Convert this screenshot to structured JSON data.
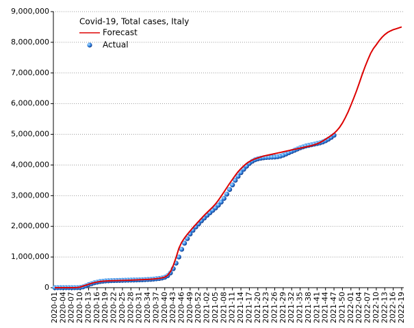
{
  "chart_data": {
    "type": "line",
    "title": "Covid-19, Total cases, Italy",
    "categories": [
      "2020-01",
      null,
      null,
      "2020-04",
      null,
      null,
      "2020-07",
      null,
      null,
      "2020-10",
      null,
      null,
      "2020-13",
      null,
      null,
      "2020-16",
      null,
      null,
      "2020-19",
      null,
      null,
      "2020-22",
      null,
      null,
      "2020-25",
      null,
      null,
      "2020-28",
      null,
      null,
      "2020-31",
      null,
      null,
      "2020-34",
      null,
      null,
      "2020-37",
      null,
      null,
      "2020-40",
      null,
      null,
      "2020-43",
      null,
      null,
      "2020-46",
      null,
      null,
      "2020-49",
      null,
      null,
      "2020-52",
      null,
      null,
      "2021-02",
      null,
      null,
      "2021-05",
      null,
      null,
      "2021-08",
      null,
      null,
      "2021-11",
      null,
      null,
      "2021-14",
      null,
      null,
      "2021-17",
      null,
      null,
      "2021-20",
      null,
      null,
      "2021-23",
      null,
      null,
      "2021-26",
      null,
      null,
      "2021-29",
      null,
      null,
      "2021-32",
      null,
      null,
      "2021-35",
      null,
      null,
      "2021-38",
      null,
      null,
      "2021-41",
      null,
      null,
      "2021-44",
      null,
      null,
      "2021-47",
      null,
      null,
      "2021-50",
      null,
      null,
      "2022-01",
      null,
      null,
      "2022-04",
      null,
      null,
      "2022-07",
      null,
      null,
      "2022-10",
      null,
      null,
      "2022-13",
      null,
      null,
      "2022-16",
      null,
      null,
      "2022-19"
    ],
    "series": [
      {
        "name": "Forecast",
        "color": "#dd0000",
        "style": "line",
        "values": [
          0,
          0,
          0,
          0,
          0,
          0,
          0,
          0,
          5000,
          20000,
          50000,
          80000,
          110000,
          140000,
          165000,
          185000,
          200000,
          212000,
          218000,
          222000,
          225000,
          228000,
          230000,
          233000,
          236000,
          240000,
          243000,
          246000,
          250000,
          254000,
          258000,
          262000,
          266000,
          270000,
          276000,
          283000,
          292000,
          305000,
          320000,
          345000,
          400000,
          520000,
          720000,
          980000,
          1280000,
          1480000,
          1620000,
          1740000,
          1850000,
          1960000,
          2060000,
          2160000,
          2260000,
          2360000,
          2450000,
          2540000,
          2630000,
          2730000,
          2850000,
          2980000,
          3120000,
          3260000,
          3400000,
          3530000,
          3660000,
          3780000,
          3880000,
          3970000,
          4050000,
          4110000,
          4160000,
          4200000,
          4230000,
          4260000,
          4290000,
          4310000,
          4330000,
          4350000,
          4370000,
          4390000,
          4410000,
          4430000,
          4450000,
          4470000,
          4490000,
          4510000,
          4530000,
          4550000,
          4570000,
          4590000,
          4610000,
          4630000,
          4660000,
          4690000,
          4730000,
          4780000,
          4840000,
          4900000,
          4960000,
          5030000,
          5120000,
          5230000,
          5370000,
          5540000,
          5730000,
          5950000,
          6180000,
          6420000,
          6680000,
          6950000,
          7200000,
          7430000,
          7640000,
          7800000,
          7920000,
          8050000,
          8160000,
          8250000,
          8320000,
          8370000,
          8410000,
          8440000,
          8470000,
          8500000
        ]
      },
      {
        "name": "Actual",
        "color": "#1f5fd0",
        "style": "markers",
        "values": [
          0,
          0,
          0,
          0,
          0,
          0,
          0,
          0,
          1000,
          10000,
          25000,
          60000,
          100000,
          130000,
          160000,
          180000,
          200000,
          210000,
          220000,
          225000,
          230000,
          233000,
          235000,
          237000,
          240000,
          242000,
          245000,
          248000,
          250000,
          252000,
          255000,
          258000,
          262000,
          267000,
          272000,
          280000,
          290000,
          300000,
          315000,
          340000,
          390000,
          480000,
          620000,
          800000,
          1000000,
          1250000,
          1450000,
          1600000,
          1750000,
          1870000,
          1980000,
          2080000,
          2180000,
          2270000,
          2360000,
          2440000,
          2520000,
          2600000,
          2690000,
          2790000,
          2910000,
          3050000,
          3200000,
          3350000,
          3500000,
          3630000,
          3750000,
          3860000,
          3960000,
          4050000,
          4120000,
          4170000,
          4200000,
          4220000,
          4235000,
          4245000,
          4250000,
          4255000,
          4260000,
          4270000,
          4290000,
          4320000,
          4360000,
          4400000,
          4440000,
          4480000,
          4520000,
          4560000,
          4590000,
          4620000,
          4640000,
          4660000,
          4680000,
          4700000,
          4720000,
          4750000,
          4790000,
          4840000,
          4900000,
          4970000,
          null,
          null,
          null,
          null,
          null,
          null,
          null,
          null,
          null,
          null,
          null,
          null,
          null,
          null,
          null,
          null,
          null,
          null,
          null,
          null,
          null,
          null,
          null,
          null
        ]
      }
    ],
    "ylim": [
      0,
      9000000
    ],
    "yticks": [
      0,
      {
        "value": 1000000,
        "label": "1,000,000"
      },
      {
        "value": 2000000,
        "label": "2,000,000"
      },
      {
        "value": 3000000,
        "label": "3,000,000"
      },
      {
        "value": 4000000,
        "label": "4,000,000"
      },
      {
        "value": 5000000,
        "label": "5,000,000"
      },
      {
        "value": 6000000,
        "label": "6,000,000"
      },
      {
        "value": 7000000,
        "label": "7,000,000"
      },
      {
        "value": 8000000,
        "label": "8,000,000"
      },
      {
        "value": 9000000,
        "label": "9,000,000"
      }
    ],
    "grid": true
  }
}
